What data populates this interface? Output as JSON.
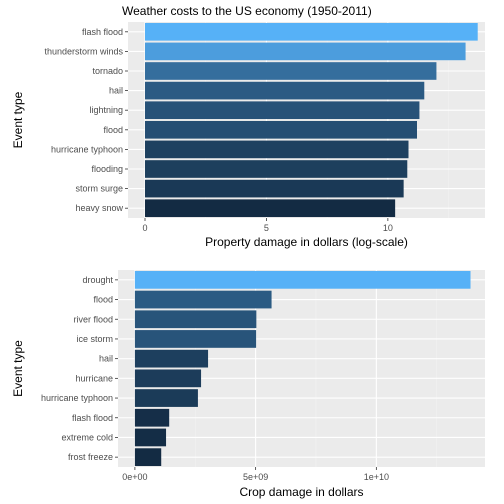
{
  "title": "Weather costs to the US economy (1950-2011)",
  "chart_data": [
    {
      "type": "bar",
      "orientation": "horizontal",
      "xlabel": "Property damage in dollars (log-scale)",
      "ylabel": "Event type",
      "xlim": [
        -0.7,
        14.0
      ],
      "xticks": [
        {
          "value": 0,
          "label": "0"
        },
        {
          "value": 5,
          "label": "5"
        },
        {
          "value": 10,
          "label": "10"
        }
      ],
      "grid": true,
      "fill_scale": {
        "low": "#132B43",
        "high": "#56B1F7"
      },
      "categories": [
        "flash flood",
        "thunderstorm winds",
        "tornado",
        "hail",
        "lightning",
        "flood",
        "hurricane typhoon",
        "flooding",
        "storm surge",
        "heavy snow"
      ],
      "values": [
        13.7,
        13.2,
        12.0,
        11.5,
        11.3,
        11.2,
        10.85,
        10.8,
        10.65,
        10.3
      ]
    },
    {
      "type": "bar",
      "orientation": "horizontal",
      "xlabel": "Crop damage in dollars",
      "ylabel": "Event type",
      "xlim": [
        -700000000.0,
        14500000000.0
      ],
      "xticks": [
        {
          "value": 0,
          "label": "0e+00"
        },
        {
          "value": 5000000000.0,
          "label": "5e+09"
        },
        {
          "value": 10000000000.0,
          "label": "1e+10"
        }
      ],
      "grid": true,
      "fill_scale": {
        "low": "#132B43",
        "high": "#56B1F7"
      },
      "categories": [
        "drought",
        "flood",
        "river flood",
        "ice storm",
        "hail",
        "hurricane",
        "hurricane typhoon",
        "flash flood",
        "extreme cold",
        "frost freeze"
      ],
      "values": [
        13900000000.0,
        5660000000.0,
        5030000000.0,
        5020000000.0,
        3030000000.0,
        2740000000.0,
        2610000000.0,
        1420000000.0,
        1290000000.0,
        1090000000.0
      ]
    }
  ]
}
